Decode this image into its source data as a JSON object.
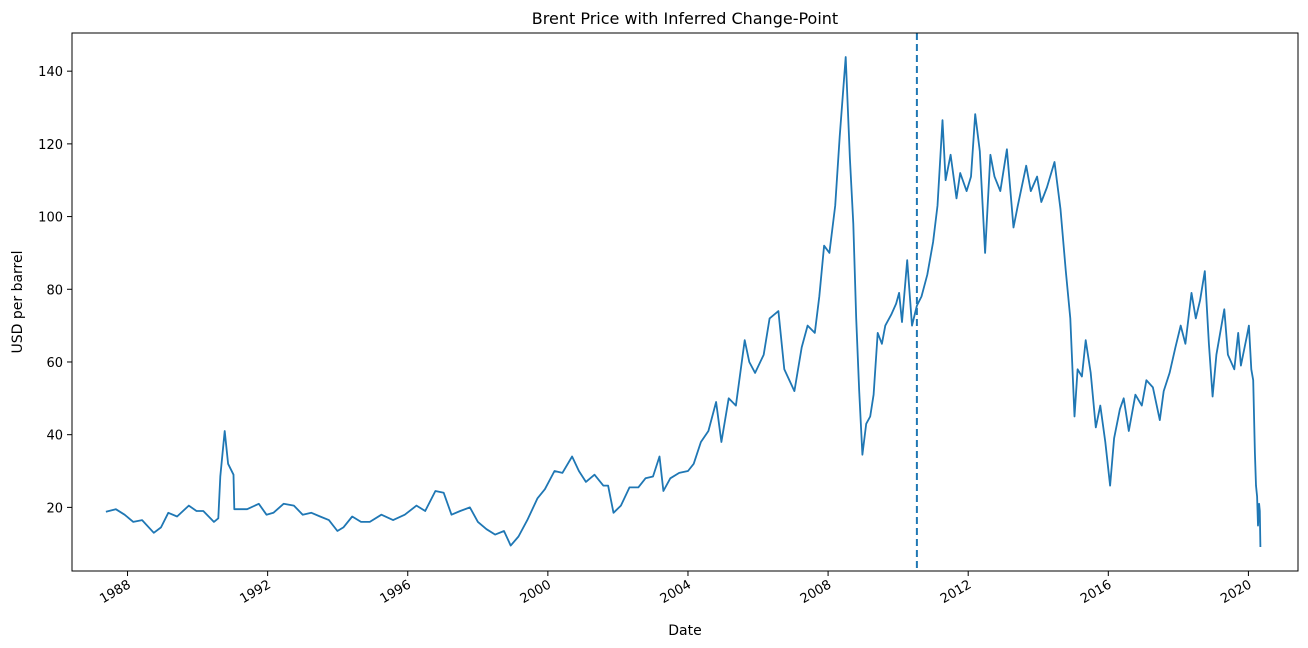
{
  "chart_data": {
    "type": "line",
    "title": "Brent Price with Inferred Change-Point",
    "xlabel": "Date",
    "ylabel": "USD per barrel",
    "xlim": [
      "1986-06-01",
      "2021-06-01"
    ],
    "ylim": [
      2.5,
      150.5
    ],
    "grid": false,
    "legend": "none",
    "x_ticks": [
      {
        "date": "1988-01-01",
        "label": "1988"
      },
      {
        "date": "1992-01-01",
        "label": "1992"
      },
      {
        "date": "1996-01-01",
        "label": "1996"
      },
      {
        "date": "2000-01-01",
        "label": "2000"
      },
      {
        "date": "2004-01-01",
        "label": "2004"
      },
      {
        "date": "2008-01-01",
        "label": "2008"
      },
      {
        "date": "2012-01-01",
        "label": "2012"
      },
      {
        "date": "2016-01-01",
        "label": "2016"
      },
      {
        "date": "2020-01-01",
        "label": "2020"
      }
    ],
    "y_ticks": [
      20,
      40,
      60,
      80,
      100,
      120,
      140
    ],
    "change_point": {
      "date": "2010-07-15",
      "style": "dashed"
    },
    "series": [
      {
        "color": "#1f77b4",
        "x": [
          "1987-05-20",
          "1987-09-01",
          "1987-12-01",
          "1988-03-01",
          "1988-06-01",
          "1988-10-01",
          "1988-12-15",
          "1989-03-01",
          "1989-06-01",
          "1989-10-01",
          "1989-12-20",
          "1990-03-01",
          "1990-06-20",
          "1990-08-05",
          "1990-08-25",
          "1990-10-10",
          "1990-11-15",
          "1991-01-10",
          "1991-01-18",
          "1991-03-01",
          "1991-06-01",
          "1991-10-01",
          "1991-12-20",
          "1992-03-01",
          "1992-06-15",
          "1992-10-01",
          "1993-01-01",
          "1993-04-01",
          "1993-07-01",
          "1993-10-01",
          "1993-12-28",
          "1994-03-01",
          "1994-06-01",
          "1994-09-01",
          "1994-12-01",
          "1995-04-01",
          "1995-08-01",
          "1995-12-01",
          "1996-04-01",
          "1996-07-01",
          "1996-10-15",
          "1997-01-10",
          "1997-04-01",
          "1997-07-01",
          "1997-10-10",
          "1998-01-01",
          "1998-04-01",
          "1998-07-01",
          "1998-10-01",
          "1998-12-10",
          "1999-03-01",
          "1999-06-01",
          "1999-09-15",
          "1999-12-01",
          "2000-03-10",
          "2000-06-01",
          "2000-09-10",
          "2000-11-20",
          "2001-02-01",
          "2001-05-01",
          "2001-08-01",
          "2001-09-20",
          "2001-11-15",
          "2002-02-01",
          "2002-05-01",
          "2002-08-01",
          "2002-10-15",
          "2003-01-01",
          "2003-03-10",
          "2003-04-20",
          "2003-07-01",
          "2003-10-01",
          "2004-01-01",
          "2004-03-01",
          "2004-05-15",
          "2004-08-01",
          "2004-10-20",
          "2004-12-15",
          "2005-03-01",
          "2005-05-15",
          "2005-08-15",
          "2005-10-01",
          "2005-12-01",
          "2006-03-01",
          "2006-05-01",
          "2006-08-01",
          "2006-10-01",
          "2007-01-15",
          "2007-04-01",
          "2007-06-01",
          "2007-08-15",
          "2007-10-01",
          "2007-11-20",
          "2008-01-15",
          "2008-03-15",
          "2008-05-01",
          "2008-07-03",
          "2008-08-15",
          "2008-09-20",
          "2008-10-20",
          "2008-11-20",
          "2008-12-24",
          "2009-02-01",
          "2009-03-15",
          "2009-04-20",
          "2009-06-01",
          "2009-07-15",
          "2009-08-20",
          "2009-10-20",
          "2009-12-10",
          "2010-01-10",
          "2010-02-10",
          "2010-04-05",
          "2010-05-25",
          "2010-07-15",
          "2010-09-01",
          "2010-11-01",
          "2010-12-31",
          "2011-02-15",
          "2011-04-08",
          "2011-05-10",
          "2011-07-01",
          "2011-09-01",
          "2011-10-10",
          "2011-12-15",
          "2012-01-30",
          "2012-03-14",
          "2012-05-01",
          "2012-06-25",
          "2012-08-20",
          "2012-10-01",
          "2012-12-01",
          "2013-02-08",
          "2013-04-17",
          "2013-06-01",
          "2013-08-28",
          "2013-10-15",
          "2013-12-20",
          "2014-02-01",
          "2014-04-01",
          "2014-06-19",
          "2014-08-20",
          "2014-10-15",
          "2014-12-01",
          "2015-01-13",
          "2015-02-15",
          "2015-04-01",
          "2015-05-10",
          "2015-07-01",
          "2015-08-24",
          "2015-10-10",
          "2015-12-01",
          "2016-01-20",
          "2016-03-01",
          "2016-05-01",
          "2016-06-09",
          "2016-08-02",
          "2016-10-10",
          "2016-12-15",
          "2017-02-01",
          "2017-04-10",
          "2017-06-21",
          "2017-08-01",
          "2017-10-01",
          "2017-12-01",
          "2018-01-25",
          "2018-03-15",
          "2018-05-17",
          "2018-07-01",
          "2018-08-15",
          "2018-10-03",
          "2018-11-15",
          "2018-12-24",
          "2019-02-01",
          "2019-04-25",
          "2019-06-01",
          "2019-08-07",
          "2019-09-16",
          "2019-10-15",
          "2019-12-15",
          "2020-01-06",
          "2020-01-31",
          "2020-02-20",
          "2020-03-09",
          "2020-03-20",
          "2020-04-01",
          "2020-04-10",
          "2020-04-21",
          "2020-04-29",
          "2020-05-05"
        ],
        "y": [
          18.8,
          19.5,
          18.0,
          16.0,
          16.5,
          13.0,
          14.5,
          18.5,
          17.5,
          20.5,
          19.0,
          19.0,
          16.0,
          17.0,
          28.5,
          41.0,
          32.0,
          29.0,
          19.5,
          19.5,
          19.5,
          21.0,
          18.0,
          18.5,
          21.0,
          20.5,
          18.0,
          18.5,
          17.5,
          16.5,
          13.5,
          14.5,
          17.5,
          16.0,
          16.0,
          18.0,
          16.5,
          18.0,
          20.5,
          19.0,
          24.5,
          24.0,
          18.0,
          19.0,
          20.0,
          16.0,
          14.0,
          12.5,
          13.5,
          9.5,
          12.0,
          16.5,
          22.5,
          25.0,
          30.0,
          29.5,
          34.0,
          30.0,
          27.0,
          29.0,
          26.0,
          26.0,
          18.5,
          20.5,
          25.5,
          25.5,
          28.0,
          28.5,
          34.0,
          24.5,
          28.0,
          29.5,
          30.0,
          32.0,
          38.0,
          41.0,
          49.0,
          38.0,
          50.0,
          48.0,
          66.0,
          60.0,
          57.0,
          62.0,
          72.0,
          74.0,
          58.0,
          52.0,
          64.0,
          70.0,
          68.0,
          78.0,
          92.0,
          90.0,
          103.0,
          122.0,
          143.9,
          116.0,
          98.0,
          72.0,
          52.0,
          34.5,
          43.0,
          45.0,
          51.0,
          68.0,
          65.0,
          70.0,
          73.0,
          76.0,
          79.0,
          71.0,
          88.0,
          70.0,
          75.5,
          78.0,
          84.0,
          93.0,
          103.0,
          126.5,
          110.0,
          117.0,
          105.0,
          112.0,
          107.0,
          111.0,
          128.2,
          118.0,
          90.0,
          117.0,
          111.0,
          107.0,
          118.5,
          97.0,
          103.0,
          114.0,
          107.0,
          111.0,
          104.0,
          108.0,
          115.0,
          102.0,
          85.0,
          72.0,
          45.0,
          58.0,
          56.0,
          66.0,
          57.0,
          42.0,
          48.0,
          38.0,
          26.0,
          39.0,
          47.0,
          50.0,
          41.0,
          51.0,
          48.0,
          55.0,
          53.0,
          44.0,
          52.0,
          57.0,
          64.0,
          70.0,
          65.0,
          79.0,
          72.0,
          77.0,
          85.0,
          65.0,
          50.5,
          62.0,
          74.5,
          62.0,
          58.0,
          68.0,
          59.0,
          67.0,
          70.0,
          58.0,
          55.0,
          35.0,
          26.0,
          23.0,
          15.0,
          21.0,
          19.0,
          9.1
        ]
      }
    ]
  }
}
